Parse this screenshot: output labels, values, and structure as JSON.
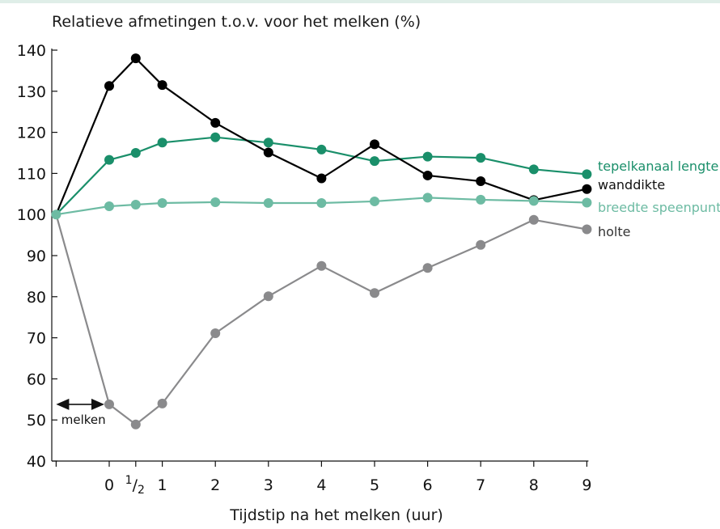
{
  "chart_data": {
    "type": "line",
    "title": "",
    "ylabel": "Relatieve afmetingen t.o.v. voor het melken (%)",
    "xlabel": "Tijdstip na het melken (uur)",
    "ylim": [
      40,
      140
    ],
    "y_ticks": [
      40,
      50,
      60,
      70,
      80,
      90,
      100,
      110,
      120,
      130,
      140
    ],
    "x_range": [
      -1,
      9
    ],
    "x_ticks": [
      0,
      0.5,
      1,
      2,
      3,
      4,
      5,
      6,
      7,
      8,
      9
    ],
    "x_tick_labels": [
      "0",
      "1/2",
      "1",
      "2",
      "3",
      "4",
      "5",
      "6",
      "7",
      "8",
      "9"
    ],
    "x": [
      -1,
      0,
      0.5,
      1,
      2,
      3,
      4,
      5,
      6,
      7,
      8,
      9
    ],
    "grid": false,
    "legend": "right",
    "series": [
      {
        "name": "tepelkanaal lengte",
        "color": "#1a8f6a",
        "values": [
          100,
          113.3,
          115,
          117.5,
          118.8,
          117.5,
          115.8,
          113,
          114.1,
          113.8,
          111,
          109.8
        ]
      },
      {
        "name": "wanddikte",
        "color": "#000000",
        "values": [
          100,
          131.3,
          138,
          131.5,
          122.3,
          115.1,
          108.8,
          117.1,
          109.5,
          108.1,
          103.5,
          106.2
        ]
      },
      {
        "name": "breedte speenpunt",
        "color": "#6dbba3",
        "values": [
          100,
          102,
          102.4,
          102.8,
          103,
          102.8,
          102.8,
          103.2,
          104.1,
          103.6,
          103.3,
          102.9
        ]
      },
      {
        "name": "holte",
        "color": "#8a8a8c",
        "values": [
          100,
          53.8,
          48.9,
          54,
          71.1,
          80.1,
          87.5,
          80.9,
          87,
          92.6,
          98.7,
          96.4
        ]
      }
    ],
    "annotation": {
      "text": "melken",
      "from_x": -1,
      "to_x": 0,
      "y": 53.8
    }
  }
}
